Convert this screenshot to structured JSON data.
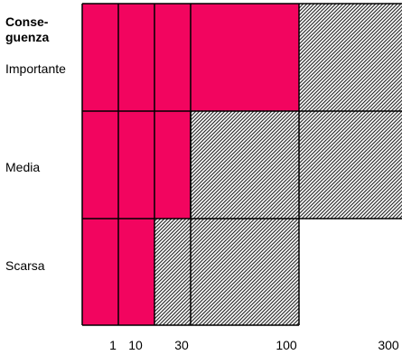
{
  "axis_title": "Conse-\nguenza",
  "rows": [
    {
      "label": "Importante",
      "cells": [
        "red",
        "red",
        "red",
        "red",
        "hatch"
      ]
    },
    {
      "label": "Media",
      "cells": [
        "red",
        "red",
        "red",
        "hatch",
        "hatch"
      ]
    },
    {
      "label": "Scarsa",
      "cells": [
        "red",
        "red",
        "hatch",
        "hatch",
        "empty"
      ]
    }
  ],
  "x_ticks": [
    "1",
    "10",
    "30",
    "100",
    "300"
  ],
  "colors": {
    "red": "#f2055f",
    "hatch_dark": "#333333",
    "hatch_light": "#ffffff",
    "grid": "#000000"
  }
}
